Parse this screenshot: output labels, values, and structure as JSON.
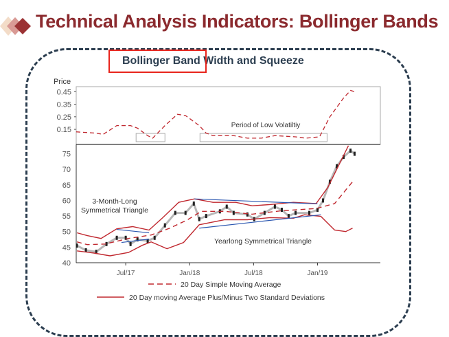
{
  "header": {
    "title": "Technical Analysis Indicators: Bollinger Bands"
  },
  "colors": {
    "title": "#8b2a2e",
    "band": "#c0282f",
    "triangle": "#2a56b0",
    "highlight": "#e8241c",
    "frame": "#2c3e50"
  },
  "chart_data": {
    "type": "line",
    "title": "Bollinger Band Width and Squeeze",
    "ylabel": "Price",
    "x_unit": "months since Jan 2017",
    "xlim": [
      1.35,
      29.9
    ],
    "x_ticks": [
      {
        "m": 6,
        "label": "Jul/17"
      },
      {
        "m": 12,
        "label": "Jan/18"
      },
      {
        "m": 18,
        "label": "Jul/18"
      },
      {
        "m": 24,
        "label": "Jan/19"
      }
    ],
    "width_panel": {
      "ylim": [
        0.03,
        0.49
      ],
      "y_ticks": [
        0.15,
        0.25,
        0.35,
        0.45
      ],
      "series": {
        "name": "Band Width",
        "x": [
          1.35,
          3.23,
          3.87,
          5.16,
          6.45,
          7.1,
          8.06,
          8.52,
          9.68,
          10.84,
          11.61,
          12.9,
          13.55,
          14.19,
          16.13,
          17.42,
          18.71,
          20,
          21.94,
          22.9,
          24.19,
          25.16,
          26.45,
          27.1,
          27.48
        ],
        "values": [
          0.13,
          0.12,
          0.11,
          0.18,
          0.18,
          0.16,
          0.1,
          0.08,
          0.18,
          0.27,
          0.26,
          0.18,
          0.12,
          0.1,
          0.1,
          0.08,
          0.08,
          0.1,
          0.09,
          0.08,
          0.09,
          0.25,
          0.4,
          0.46,
          0.45
        ]
      },
      "annotation": "Period of Low Volatiltiy",
      "squeeze_boxes": [
        [
          6.97,
          9.68
        ],
        [
          12.97,
          24.9
        ]
      ]
    },
    "price_panel": {
      "ylim": [
        40,
        78
      ],
      "y_ticks": [
        40,
        45,
        50,
        55,
        60,
        65,
        70,
        75
      ],
      "price": {
        "x": [
          1.42,
          2.26,
          3.23,
          4.19,
          5.16,
          6,
          6.45,
          7.1,
          8.06,
          8.71,
          9.68,
          10.65,
          11.61,
          12.39,
          12.9,
          13.55,
          14.84,
          15.48,
          16.13,
          17.42,
          18.06,
          19.03,
          20,
          20.65,
          21.29,
          21.94,
          23.23,
          24,
          24.52,
          25.16,
          25.81,
          26.45,
          27.1,
          27.48
        ],
        "values": [
          45.5,
          44,
          43.5,
          46,
          48,
          48,
          46,
          47.5,
          47,
          48,
          52,
          56,
          56,
          59,
          54,
          55,
          56.5,
          58,
          56,
          55.5,
          54,
          56,
          58,
          57,
          55,
          56,
          56,
          57,
          60,
          66,
          71,
          74,
          76,
          75
        ]
      },
      "series": [
        {
          "name": "20 Day Simple Moving Average",
          "style": "dashed",
          "x": [
            1.42,
            2.39,
            4.06,
            6.26,
            8.39,
            10.13,
            11.81,
            13.1,
            15.29,
            17.87,
            20.65,
            23.87,
            25.61,
            27.29
          ],
          "values": [
            46.7,
            45.8,
            46,
            47.8,
            48.9,
            51.1,
            53.8,
            56.5,
            56.5,
            55.6,
            56.7,
            57.4,
            59,
            66
          ]
        },
        {
          "name": "Upper Band",
          "style": "solid",
          "x": [
            1.42,
            2.39,
            3.68,
            5.16,
            6.65,
            8.19,
            9.48,
            10.97,
            12.45,
            14.19,
            16.32,
            17.87,
            19.55,
            21.74,
            23.87,
            24.97,
            26.9
          ],
          "values": [
            49.6,
            48.7,
            47.8,
            50.9,
            51.6,
            50.5,
            54.5,
            59.4,
            60.5,
            59.4,
            59.4,
            58.3,
            58.7,
            59.4,
            59,
            64.2,
            77.6
          ]
        },
        {
          "name": "Lower Band",
          "style": "solid",
          "x": [
            1.42,
            3.03,
            4.52,
            6.26,
            7.55,
            8.39,
            9.87,
            11.42,
            12.9,
            15.29,
            17.42,
            19.55,
            21.74,
            22.77,
            24.32,
            25.61,
            26.65,
            27.29
          ],
          "values": [
            43.8,
            43.1,
            42.2,
            43.3,
            45.6,
            46.7,
            44.5,
            46.5,
            52.2,
            53.8,
            53.8,
            54.5,
            54.3,
            55.4,
            54.9,
            50.5,
            50,
            51.1
          ]
        }
      ],
      "triangles": [
        [
          [
            5.16,
            50.7
          ],
          [
            8.19,
            49.6
          ]
        ],
        [
          [
            5.6,
            46.5
          ],
          [
            8.19,
            47.6
          ]
        ],
        [
          [
            12.45,
            60.5
          ],
          [
            24,
            58.9
          ]
        ],
        [
          [
            12.9,
            51.1
          ],
          [
            24.32,
            55.4
          ]
        ]
      ],
      "annotations": {
        "small_1": "3-Month-Long",
        "small_2": "Symmetrical Triangle",
        "large": "Yearlong Symmetrical Triangle"
      }
    },
    "legend": [
      "20 Day Simple Moving Average",
      "20 Day moving Average Plus/Minus Two Standard Deviations"
    ]
  }
}
